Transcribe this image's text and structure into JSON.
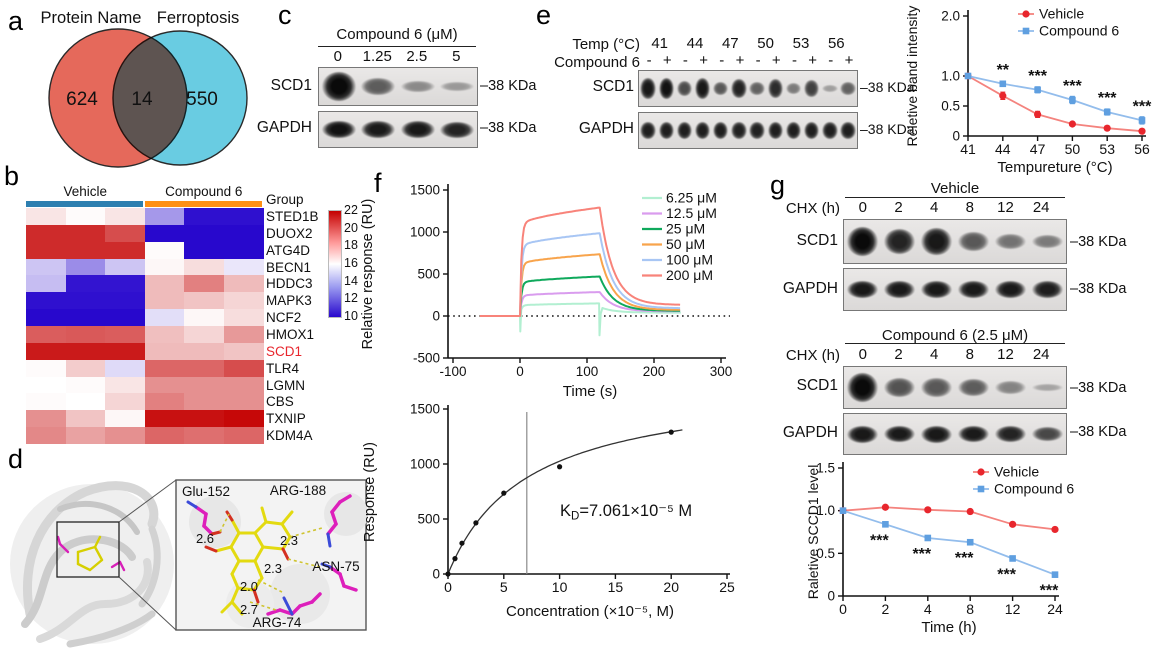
{
  "panel_labels": {
    "a": "a",
    "b": "b",
    "c": "c",
    "d": "d",
    "e": "e",
    "f": "f",
    "g": "g"
  },
  "venn": {
    "left_label": "Protein Name",
    "right_label": "Ferroptosis",
    "left_count": "624",
    "overlap_count": "14",
    "right_count": "550",
    "left_color": "#E5695B",
    "right_color": "#69CCE2",
    "left_label_color": "#EF6A5C",
    "right_label_color": "#4ED0DB"
  },
  "blot_c": {
    "title": "Compound 6 (μM)",
    "doses": [
      "0",
      "1.25",
      "2.5",
      "5"
    ],
    "rows": [
      {
        "protein": "SCD1",
        "kda": "–38 KDa",
        "bands": [
          1,
          0.52,
          0.27,
          0.18
        ]
      },
      {
        "protein": "GAPDH",
        "kda": "–38 KDa",
        "bands": [
          0.95,
          0.9,
          0.92,
          0.85
        ]
      }
    ]
  },
  "blot_e": {
    "temp_label": "Temp (°C)",
    "temps": [
      "41",
      "44",
      "47",
      "50",
      "53",
      "56"
    ],
    "compound_label": "Compound 6",
    "signs": [
      "-",
      "+",
      "-",
      "+",
      "-",
      "+",
      "-",
      "+",
      "-",
      "+",
      "-",
      "+"
    ],
    "rows": [
      {
        "protein": "SCD1",
        "kda": "–38 KDa",
        "bands": [
          0.92,
          0.95,
          0.62,
          0.92,
          0.55,
          0.85,
          0.5,
          0.8,
          0.35,
          0.68,
          0.15,
          0.5
        ]
      },
      {
        "protein": "GAPDH",
        "kda": "–38 KDa",
        "bands": [
          0.88,
          0.88,
          0.88,
          0.88,
          0.88,
          0.86,
          0.86,
          0.88,
          0.88,
          0.88,
          0.88,
          0.88
        ]
      }
    ]
  },
  "blot_g": [
    {
      "title": "Vehicle",
      "chx_label": "CHX (h)",
      "times": [
        "0",
        "2",
        "4",
        "8",
        "12",
        "24"
      ],
      "rows": [
        {
          "protein": "SCD1",
          "kda": "–38 KDa",
          "bands": [
            1,
            0.85,
            0.92,
            0.55,
            0.4,
            0.35
          ]
        },
        {
          "protein": "GAPDH",
          "kda": "–38 KDa",
          "bands": [
            0.92,
            0.9,
            0.92,
            0.9,
            0.9,
            0.88
          ]
        }
      ]
    },
    {
      "title": "Compound 6 (2.5 μM)",
      "chx_label": "CHX (h)",
      "times": [
        "0",
        "2",
        "4",
        "8",
        "12",
        "24"
      ],
      "rows": [
        {
          "protein": "SCD1",
          "kda": "–38 KDa",
          "bands": [
            1,
            0.58,
            0.55,
            0.52,
            0.3,
            0.12
          ]
        },
        {
          "protein": "GAPDH",
          "kda": "–38 KDa",
          "bands": [
            0.92,
            0.9,
            0.92,
            0.9,
            0.85,
            0.65
          ]
        }
      ]
    }
  ],
  "structure": {
    "residues": [
      "Glu-152",
      "ARG-188",
      "ASN-75",
      "ARG-74"
    ],
    "distances": [
      "2.6",
      "2.3",
      "2.3",
      "2.0",
      "2.7"
    ]
  },
  "chart_data": [
    {
      "id": "heatmap",
      "type": "heatmap",
      "group_label": "Group",
      "groups": [
        {
          "name": "Vehicle",
          "color": "#2D7FB0",
          "cols": 3
        },
        {
          "name": "Compound 6",
          "color": "#FF9015",
          "cols": 3
        }
      ],
      "genes": [
        "STED1B",
        "DUOX2",
        "ATG4D",
        "BECN1",
        "HDDC3",
        "MAPK3",
        "NCF2",
        "HMOX1",
        "SCD1",
        "TLR4",
        "LGMN",
        "CBS",
        "TXNIP",
        "KDM4A"
      ],
      "highlight_gene": "SCD1",
      "highlight_color": "#E8262D",
      "values": [
        [
          16.6,
          16.1,
          16.6,
          13.5,
          10.2,
          10.2
        ],
        [
          21,
          21,
          20.2,
          10,
          10,
          10
        ],
        [
          21,
          21,
          21,
          16.1,
          10,
          10
        ],
        [
          14.6,
          13.2,
          14.6,
          16.2,
          16.8,
          15.4
        ],
        [
          14.4,
          10.3,
          10.3,
          17.6,
          19,
          17.6
        ],
        [
          10.2,
          10.2,
          10.2,
          17.6,
          17.4,
          17
        ],
        [
          10,
          10,
          10,
          15.2,
          16.2,
          16.8
        ],
        [
          19.8,
          19.9,
          19.8,
          17.5,
          17,
          18.4
        ],
        [
          21.4,
          21.4,
          21.4,
          17.6,
          17.6,
          17.4
        ],
        [
          16.1,
          17.2,
          15.1,
          19.6,
          19.6,
          20.2
        ],
        [
          16,
          16.1,
          16.6,
          18.6,
          18.6,
          18.6
        ],
        [
          16.1,
          16,
          17,
          19,
          18.6,
          18.6
        ],
        [
          18.6,
          17.4,
          16.2,
          21.6,
          21.6,
          21.8
        ],
        [
          18.8,
          18.2,
          18.6,
          19.6,
          19.4,
          19.6
        ]
      ],
      "scale": {
        "min": 10,
        "max": 22,
        "ticks": [
          "22",
          "20",
          "18",
          "16",
          "14",
          "12",
          "10"
        ],
        "high_color": "#C40000",
        "low_color": "#2808CD",
        "mid_color": "#FFFFFF"
      }
    },
    {
      "id": "e_chart",
      "type": "line",
      "categories": [
        "41",
        "44",
        "47",
        "50",
        "53",
        "56"
      ],
      "xlabel": "Tempureture (°C)",
      "ylabel": "Reletive band intensity",
      "ylim": [
        0,
        2
      ],
      "yticks": [
        0,
        0.5,
        1,
        2
      ],
      "series": [
        {
          "name": "Vehicle",
          "marker": "circle",
          "color": "#E8262D",
          "line_color": "#F4837E",
          "values": [
            1,
            0.67,
            0.36,
            0.2,
            0.13,
            0.08
          ],
          "errors": [
            0.04,
            0.06,
            0.05,
            0.03,
            0.03,
            0.03
          ]
        },
        {
          "name": "Compound 6",
          "marker": "square",
          "color": "#5F9FE0",
          "line_color": "#93BDEC",
          "values": [
            1,
            0.87,
            0.77,
            0.6,
            0.4,
            0.26
          ],
          "errors": [
            0.04,
            0.04,
            0.05,
            0.06,
            0.05,
            0.06
          ]
        }
      ],
      "significance": [
        {
          "category": "44",
          "text": "**"
        },
        {
          "category": "47",
          "text": "***"
        },
        {
          "category": "50",
          "text": "***"
        },
        {
          "category": "53",
          "text": "***"
        },
        {
          "category": "56",
          "text": "***"
        }
      ],
      "sig_series": 1,
      "legend_position": "top-right"
    },
    {
      "id": "f_sensorgram",
      "type": "line",
      "xlabel": "Time (s)",
      "ylabel": "Relative response (RU)",
      "xlim": [
        -100,
        300
      ],
      "xticks": [
        -100,
        0,
        100,
        200,
        300
      ],
      "ylim": [
        -500,
        1500
      ],
      "yticks": [
        -500,
        0,
        500,
        1000,
        1500
      ],
      "baseline": 0,
      "t_start": -60,
      "t_on": 0,
      "t_off": 118,
      "t_end": 240,
      "series": [
        {
          "name": "6.25 μM",
          "color": "#B2EFD1",
          "plateau": 150,
          "tail": 40,
          "spike": true
        },
        {
          "name": "12.5 μM",
          "color": "#D99CEE",
          "plateau": 285,
          "tail": 55
        },
        {
          "name": "25 μM",
          "color": "#0FA95C",
          "plateau": 470,
          "tail": 62
        },
        {
          "name": "50 μM",
          "color": "#F8A44C",
          "plateau": 735,
          "tail": 72
        },
        {
          "name": "100 μM",
          "color": "#A8C6F4",
          "plateau": 985,
          "tail": 92
        },
        {
          "name": "200 μM",
          "color": "#F8837A",
          "plateau": 1290,
          "tail": 132
        }
      ],
      "legend_position": "top-right"
    },
    {
      "id": "f_binding",
      "type": "scatter",
      "xlabel": "Concentration (×10⁻⁵, M)",
      "ylabel": "Response (RU)",
      "xlim": [
        0,
        25
      ],
      "xticks": [
        0,
        5,
        10,
        15,
        20,
        25
      ],
      "ylim": [
        0,
        1500
      ],
      "yticks": [
        0,
        500,
        1000,
        1500
      ],
      "points_x": [
        0,
        0.625,
        1.25,
        2.5,
        5,
        10,
        20
      ],
      "points_y": [
        0,
        140,
        280,
        465,
        735,
        975,
        1290
      ],
      "fit": {
        "rmax": 1750,
        "kd": 7.061
      },
      "vline_x": 7.061,
      "kd_label": {
        "k": "K",
        "sub": "D",
        "rest": "=7.061×10⁻⁵ M"
      }
    },
    {
      "id": "g_chart",
      "type": "line",
      "categories": [
        "0",
        "2",
        "4",
        "8",
        "12",
        "24"
      ],
      "xlabel": "Time (h)",
      "ylabel": "Raletive SCCD1 level",
      "ylim": [
        0,
        1.5
      ],
      "yticks": [
        0,
        0.5,
        1,
        1.5
      ],
      "series": [
        {
          "name": "Vehicle",
          "marker": "circle",
          "color": "#E8262D",
          "line_color": "#F4837E",
          "values": [
            1,
            1.04,
            1.01,
            0.99,
            0.84,
            0.78
          ]
        },
        {
          "name": "Compound 6",
          "marker": "square",
          "color": "#5F9FE0",
          "line_color": "#93BDEC",
          "values": [
            1,
            0.84,
            0.68,
            0.63,
            0.44,
            0.25
          ]
        }
      ],
      "significance": [
        {
          "category": "2",
          "text": "***"
        },
        {
          "category": "4",
          "text": "***"
        },
        {
          "category": "8",
          "text": "***"
        },
        {
          "category": "12",
          "text": "***"
        },
        {
          "category": "24",
          "text": "***"
        }
      ],
      "sig_series": 1,
      "legend_position": "top-right"
    }
  ]
}
